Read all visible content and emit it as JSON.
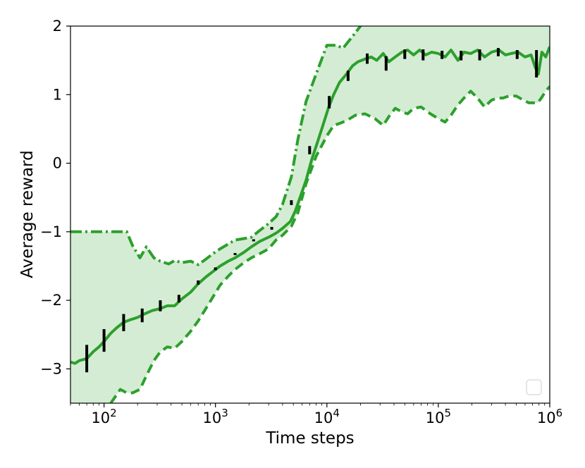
{
  "chart_data": {
    "type": "line",
    "xscale": "log",
    "xlabel": "Time steps",
    "ylabel": "Average reward",
    "xlim": [
      50,
      1000000
    ],
    "ylim": [
      -3.5,
      2
    ],
    "xticks": [
      {
        "value": 100,
        "base": "10",
        "exp": "2"
      },
      {
        "value": 1000,
        "base": "10",
        "exp": "3"
      },
      {
        "value": 10000,
        "base": "10",
        "exp": "4"
      },
      {
        "value": 100000,
        "base": "10",
        "exp": "5"
      },
      {
        "value": 1000000,
        "base": "10",
        "exp": "6"
      }
    ],
    "yticks": [
      {
        "value": 2,
        "label": "2"
      },
      {
        "value": 1,
        "label": "1"
      },
      {
        "value": 0,
        "label": "0"
      },
      {
        "value": -1,
        "label": "−1"
      },
      {
        "value": -2,
        "label": "−2"
      },
      {
        "value": -3,
        "label": "−3"
      }
    ],
    "grid": false,
    "legend": {
      "location": "lower right",
      "entries": []
    },
    "colors": {
      "line": "#2ca02c",
      "band": "#d4ecd4",
      "error_bars": "#000000"
    },
    "series": [
      {
        "style": "solid",
        "x": [
          50,
          55,
          60,
          70,
          80,
          90,
          100,
          115,
          130,
          150,
          175,
          200,
          230,
          270,
          320,
          370,
          430,
          500,
          600,
          700,
          820,
          950,
          1100,
          1300,
          1500,
          1800,
          2100,
          2500,
          3000,
          3500,
          4000,
          4700,
          5200,
          5800,
          6500,
          7300,
          8200,
          9200,
          10300,
          11500,
          13000,
          15000,
          17000,
          19000,
          22000,
          25000,
          28000,
          32000,
          36000,
          41000,
          47000,
          53000,
          60000,
          68000,
          77000,
          87000,
          100000,
          115000,
          130000,
          150000,
          170000,
          195000,
          225000,
          260000,
          300000,
          350000,
          400000,
          450000,
          520000,
          600000,
          680000,
          740000,
          790000,
          850000,
          920000,
          1000000
        ],
        "y": [
          -2.9,
          -2.92,
          -2.88,
          -2.85,
          -2.75,
          -2.68,
          -2.6,
          -2.48,
          -2.4,
          -2.32,
          -2.28,
          -2.25,
          -2.2,
          -2.15,
          -2.12,
          -2.08,
          -2.08,
          -1.98,
          -1.88,
          -1.76,
          -1.66,
          -1.58,
          -1.5,
          -1.43,
          -1.38,
          -1.3,
          -1.22,
          -1.14,
          -1.08,
          -1.02,
          -0.95,
          -0.85,
          -0.7,
          -0.48,
          -0.25,
          0.05,
          0.3,
          0.55,
          0.8,
          1.0,
          1.18,
          1.3,
          1.42,
          1.48,
          1.52,
          1.55,
          1.5,
          1.6,
          1.48,
          1.55,
          1.62,
          1.65,
          1.58,
          1.65,
          1.58,
          1.62,
          1.6,
          1.55,
          1.65,
          1.5,
          1.62,
          1.6,
          1.65,
          1.55,
          1.62,
          1.65,
          1.58,
          1.6,
          1.62,
          1.55,
          1.58,
          1.4,
          1.3,
          1.62,
          1.55,
          1.7
        ]
      },
      {
        "style": "dashdot",
        "x": [
          50,
          80,
          120,
          160,
          180,
          210,
          240,
          280,
          320,
          380,
          430,
          500,
          600,
          700,
          820,
          950,
          1100,
          1300,
          1500,
          1800,
          2100,
          2500,
          3000,
          3500,
          4000,
          4800,
          5500,
          6500,
          8000,
          10000,
          12000,
          14000,
          17000,
          20000,
          22000,
          25000,
          1000000
        ],
        "y": [
          -1,
          -1,
          -1,
          -1,
          -1.2,
          -1.38,
          -1.22,
          -1.38,
          -1.43,
          -1.47,
          -1.42,
          -1.45,
          -1.43,
          -1.48,
          -1.4,
          -1.32,
          -1.25,
          -1.18,
          -1.12,
          -1.1,
          -1.08,
          -0.98,
          -0.88,
          -0.78,
          -0.6,
          -0.2,
          0.35,
          0.9,
          1.3,
          1.72,
          1.72,
          1.68,
          1.85,
          2.0,
          2.1,
          2.2,
          2.2
        ]
      },
      {
        "style": "dashed",
        "x": [
          115,
          140,
          160,
          180,
          210,
          240,
          280,
          320,
          370,
          430,
          500,
          600,
          700,
          820,
          950,
          1100,
          1300,
          1500,
          1800,
          2100,
          2500,
          3000,
          3500,
          4000,
          4800,
          5500,
          6500,
          8000,
          10000,
          11500,
          13000,
          15000,
          18000,
          22000,
          27000,
          32000,
          36000,
          41000,
          47000,
          53000,
          60000,
          70000,
          85000,
          100000,
          115000,
          130000,
          150000,
          170000,
          195000,
          225000,
          260000,
          300000,
          340000,
          380000,
          430000,
          500000,
          580000,
          650000,
          720000,
          780000,
          840000,
          920000,
          1000000
        ],
        "y": [
          -3.5,
          -3.3,
          -3.35,
          -3.35,
          -3.3,
          -3.1,
          -2.88,
          -2.75,
          -2.68,
          -2.7,
          -2.6,
          -2.45,
          -2.3,
          -2.12,
          -1.95,
          -1.78,
          -1.65,
          -1.55,
          -1.45,
          -1.38,
          -1.32,
          -1.25,
          -1.12,
          -1.05,
          -0.92,
          -0.72,
          -0.3,
          0.1,
          0.4,
          0.55,
          0.58,
          0.62,
          0.7,
          0.72,
          0.65,
          0.55,
          0.68,
          0.8,
          0.75,
          0.72,
          0.8,
          0.82,
          0.72,
          0.65,
          0.6,
          0.7,
          0.85,
          0.95,
          1.05,
          0.95,
          0.82,
          0.92,
          0.95,
          0.95,
          0.98,
          0.98,
          0.92,
          0.88,
          0.88,
          0.88,
          0.95,
          1.05,
          1.12
        ]
      }
    ],
    "error_bars": [
      {
        "x": 70,
        "low": -3.05,
        "high": -2.65
      },
      {
        "x": 100,
        "low": -2.75,
        "high": -2.42
      },
      {
        "x": 150,
        "low": -2.45,
        "high": -2.2
      },
      {
        "x": 220,
        "low": -2.32,
        "high": -2.12
      },
      {
        "x": 320,
        "low": -2.16,
        "high": -2.0
      },
      {
        "x": 470,
        "low": -2.03,
        "high": -1.92
      },
      {
        "x": 700,
        "low": -1.77,
        "high": -1.71
      },
      {
        "x": 1000,
        "low": -1.56,
        "high": -1.52
      },
      {
        "x": 1500,
        "low": -1.34,
        "high": -1.31
      },
      {
        "x": 2200,
        "low": -1.14,
        "high": -1.11
      },
      {
        "x": 3200,
        "low": -0.97,
        "high": -0.93
      },
      {
        "x": 4800,
        "low": -0.61,
        "high": -0.54
      },
      {
        "x": 7000,
        "low": 0.13,
        "high": 0.25
      },
      {
        "x": 10500,
        "low": 0.8,
        "high": 0.98
      },
      {
        "x": 15500,
        "low": 1.2,
        "high": 1.35
      },
      {
        "x": 23000,
        "low": 1.45,
        "high": 1.6
      },
      {
        "x": 34000,
        "low": 1.35,
        "high": 1.56
      },
      {
        "x": 50000,
        "low": 1.52,
        "high": 1.66
      },
      {
        "x": 73000,
        "low": 1.5,
        "high": 1.66
      },
      {
        "x": 108000,
        "low": 1.52,
        "high": 1.64
      },
      {
        "x": 160000,
        "low": 1.5,
        "high": 1.64
      },
      {
        "x": 235000,
        "low": 1.5,
        "high": 1.66
      },
      {
        "x": 345000,
        "low": 1.56,
        "high": 1.68
      },
      {
        "x": 510000,
        "low": 1.52,
        "high": 1.65
      },
      {
        "x": 760000,
        "low": 1.25,
        "high": 1.65
      }
    ]
  }
}
